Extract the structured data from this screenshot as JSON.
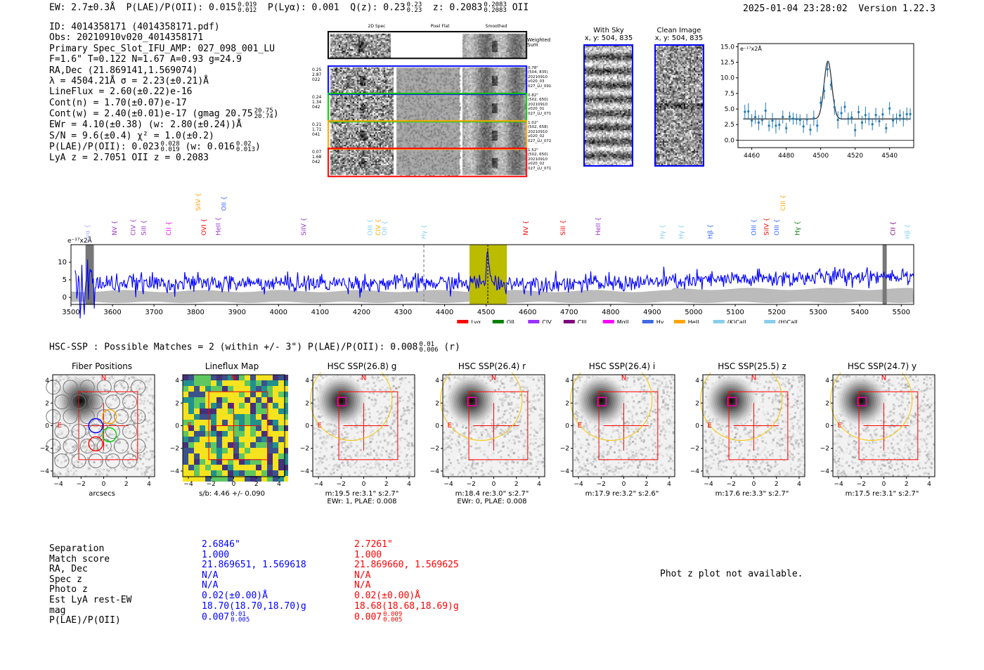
{
  "header": {
    "ew": "EW: 2.7±0.3Å",
    "plae_label": "P(LAE)/P(OII): 0.015",
    "plae_hi": "0.019",
    "plae_lo": "0.012",
    "plya": "P(Lyα): 0.001",
    "qz_label": "Q(z): 0.23",
    "qz_hi": "0.23",
    "qz_lo": "0.23",
    "z_label": "z: 0.2083",
    "z_hi": "0.2083",
    "z_lo": "0.2083",
    "z_line": "OII",
    "datetime": "2025-01-04 23:28:02",
    "version": "Version 1.22.3"
  },
  "info": {
    "id": "ID: 4014358171 (4014358171.pdf)",
    "obs": "Obs: 20210910v020_4014358171",
    "primary": "Primary Spec_Slot_IFU_AMP: 027_098_001_LU",
    "params": "F=1.6\"  T=0.122  N=1.67  A=0.93  g=24.9",
    "radec": "RA,Dec (21.869141,1.569074)",
    "lambda": "λ = 4504.21Å  σ = 2.23(±0.21)Å",
    "lineflux": "LineFlux = 2.60(±0.22)e-16",
    "contn": "Cont(n) = 1.70(±0.07)e-17",
    "contw": "Cont(w) = 2.40(±0.01)e-17 (gmag 20.75",
    "contw_hi": "20.75",
    "contw_lo": "20.74",
    "contw_close": ")",
    "ewr": "EWr = 4.10(±0.38) (w: 2.80(±0.24))Å",
    "sn": "S/N = 9.6(±0.4)  χ² = 1.0(±0.2)",
    "plae": "P(LAE)/P(OII): 0.023",
    "plae_hi": "0.028",
    "plae_lo": "0.019",
    "plae_w": "(w: 0.016",
    "plae_w_hi": "0.02",
    "plae_w_lo": "0.013",
    "plae_w_close": ")",
    "lyaz": "LyA z = 2.7051  OII z = 0.2083"
  },
  "spec2d": {
    "headers": [
      "2D Spec",
      "Pixel Flat",
      "Smoothed"
    ],
    "weighted_label": "Weighted Sum",
    "rows": [
      {
        "left": [
          "0.25",
          "2.87",
          "022"
        ],
        "right": [
          "0.78\"",
          "(504, 835)",
          "20210910",
          "v020_03",
          "027_LU_091"
        ],
        "color": "#0000ff"
      },
      {
        "left": [
          "0.24",
          "1.34",
          "042"
        ],
        "right": [
          "0.82\"",
          "(502, 650)",
          "20210910",
          "v020_01",
          "027_LU_071"
        ],
        "color": "#00cc00"
      },
      {
        "left": [
          "0.21",
          "1.71",
          "041"
        ],
        "right": [
          "1.02\"",
          "(502, 658)",
          "20210910",
          "v020_02",
          "027_LU_072"
        ],
        "color": "#ffa500"
      },
      {
        "left": [
          "0.07",
          "1.68",
          "042"
        ],
        "right": [
          "1.52\"",
          "(502, 650)",
          "20210910",
          "v020_02",
          "027_LU_071"
        ],
        "color": "#ff0000"
      }
    ]
  },
  "sky": {
    "title": "With Sky",
    "coords": "x, y: 504, 835"
  },
  "clean": {
    "title": "Clean Image",
    "coords": "x, y: 504, 835"
  },
  "line_fit": {
    "unit": "e⁻¹⁷x2Å",
    "y_ticks": [
      "15.0",
      "12.5",
      "10.0",
      "7.5",
      "5.0",
      "2.5",
      "0.0"
    ],
    "x_ticks": [
      "4460",
      "4480",
      "4500",
      "4520",
      "4540"
    ]
  },
  "full_spec": {
    "unit": "e⁻¹⁷x2Å",
    "y_ticks": [
      "10",
      "5",
      "0"
    ],
    "x_ticks": [
      "3500",
      "3600",
      "3700",
      "3800",
      "3900",
      "4000",
      "4100",
      "4200",
      "4300",
      "4400",
      "4500",
      "4600",
      "4700",
      "4800",
      "4900",
      "5000",
      "5100",
      "5200",
      "5300",
      "5400",
      "5500"
    ],
    "lines": [
      {
        "label": "Lyα",
        "color": "#aaaaee"
      },
      {
        "label": "NV",
        "color": "#9933cc"
      },
      {
        "label": "CIV",
        "color": "#9933cc"
      },
      {
        "label": "SiII",
        "color": "#9933cc"
      },
      {
        "label": "CII",
        "color": "#ee00ee"
      },
      {
        "label": "OVI",
        "color": "#ff0000"
      },
      {
        "label": "SiIV",
        "color": "#ffa500"
      },
      {
        "label": "OII",
        "color": "#3366ff"
      },
      {
        "label": "HeII",
        "color": "#9933cc"
      },
      {
        "label": "SiIV",
        "color": "#9933cc"
      },
      {
        "label": "OIII",
        "color": "#87ceeb"
      },
      {
        "label": "CIV",
        "color": "#ffa500"
      },
      {
        "label": "OII",
        "color": "#87ceeb"
      },
      {
        "label": "Hγ",
        "color": "#87ceeb"
      },
      {
        "label": "NV",
        "color": "#ff0000"
      },
      {
        "label": "SiII",
        "color": "#ff0000"
      },
      {
        "label": "HeII",
        "color": "#9933cc"
      },
      {
        "label": "Hγ",
        "color": "#87ceeb"
      },
      {
        "label": "Hγ",
        "color": "#87ceeb"
      },
      {
        "label": "Hβ",
        "color": "#3366ff"
      },
      {
        "label": "OIII",
        "color": "#3366ff"
      },
      {
        "label": "SiIV",
        "color": "#ff0000"
      },
      {
        "label": "OIII",
        "color": "#3366ff"
      },
      {
        "label": "CIII",
        "color": "#ffa500"
      },
      {
        "label": "Hγ",
        "color": "#008000"
      },
      {
        "label": "CII",
        "color": "#800080"
      },
      {
        "label": "Hβ",
        "color": "#87ceeb"
      }
    ],
    "legend": [
      {
        "label": "Lyα",
        "color": "#ff0000"
      },
      {
        "label": "OII",
        "color": "#008000"
      },
      {
        "label": "CIV",
        "color": "#9933ff"
      },
      {
        "label": "CIII",
        "color": "#800080"
      },
      {
        "label": "MgII",
        "color": "#ff00ff"
      },
      {
        "label": "Hγ",
        "color": "#4169e1"
      },
      {
        "label": "HeII",
        "color": "#ffa500"
      },
      {
        "label": "(K)CaII",
        "color": "#87ceeb"
      },
      {
        "label": "(H)CaII",
        "color": "#87ceeb"
      }
    ]
  },
  "hsc": {
    "summary": "HSC-SSP : Possible Matches = 2 (within +/- 3\")  P(LAE)/P(OII): 0.008",
    "summary_hi": "0.01",
    "summary_lo": "0.006",
    "summary_band": "(r)",
    "cutouts": [
      {
        "title": "Fiber Positions",
        "foot1": "arcsecs",
        "foot2": "",
        "kind": "fiber"
      },
      {
        "title": "Lineflux Map",
        "foot1": "s/b: 4.46 +/- 0.090",
        "foot2": "",
        "kind": "lineflux"
      },
      {
        "title": "HSC SSP(26.8) g",
        "foot1": "m:19.5  re:3.1\"  s:2.7\"",
        "foot2": "EWr: 1, PLAE: 0.008",
        "kind": "hsc"
      },
      {
        "title": "HSC SSP(26.4) r",
        "foot1": "m:18.4  re:3.0\"  s:2.7\"",
        "foot2": "EWr: 0, PLAE: 0.008",
        "kind": "hsc"
      },
      {
        "title": "HSC SSP(26.4) i",
        "foot1": "m:17.9  re:3.2\"  s:2.6\"",
        "foot2": "",
        "kind": "hsc"
      },
      {
        "title": "HSC SSP(25.5) z",
        "foot1": "m:17.6  re:3.3\"  s:2.7\"",
        "foot2": "",
        "kind": "hsc"
      },
      {
        "title": "HSC SSP(24.7) y",
        "foot1": "m:17.5  re:3.1\"  s:2.7\"",
        "foot2": "",
        "kind": "hsc"
      }
    ],
    "ticks": [
      "4",
      "2",
      "0",
      "−2",
      "−4"
    ],
    "xticks": [
      "−4",
      "−2",
      "0",
      "2",
      "4"
    ],
    "compass_n": "N",
    "compass_e": "E"
  },
  "matches": {
    "labels": [
      "Separation",
      "Match score",
      "RA, Dec",
      "Spec z",
      "Photo z",
      "Est LyA rest-EW",
      "mag",
      "P(LAE)/P(OII)"
    ],
    "m1": [
      "2.6846\"",
      "1.000",
      "21.869651, 1.569618",
      "N/A",
      "N/A",
      "0.02(±0.00)Å",
      "18.70(18.70,18.70)g",
      "0.007"
    ],
    "m1_hi": "0.01",
    "m1_lo": "0.005",
    "m2": [
      "2.7261\"",
      "1.000",
      "21.869660, 1.569625",
      "N/A",
      "N/A",
      "0.02(±0.00)Å",
      "18.68(18.68,18.69)g",
      "0.007"
    ],
    "m2_hi": "0.009",
    "m2_lo": "0.005",
    "photz_msg": "Phot z plot not available."
  },
  "colors": {
    "blue": "#0000ff",
    "red": "#ff0000",
    "spec_line": "#0000ff",
    "band": "#bbbb00",
    "noise": "#bbbbbb"
  }
}
